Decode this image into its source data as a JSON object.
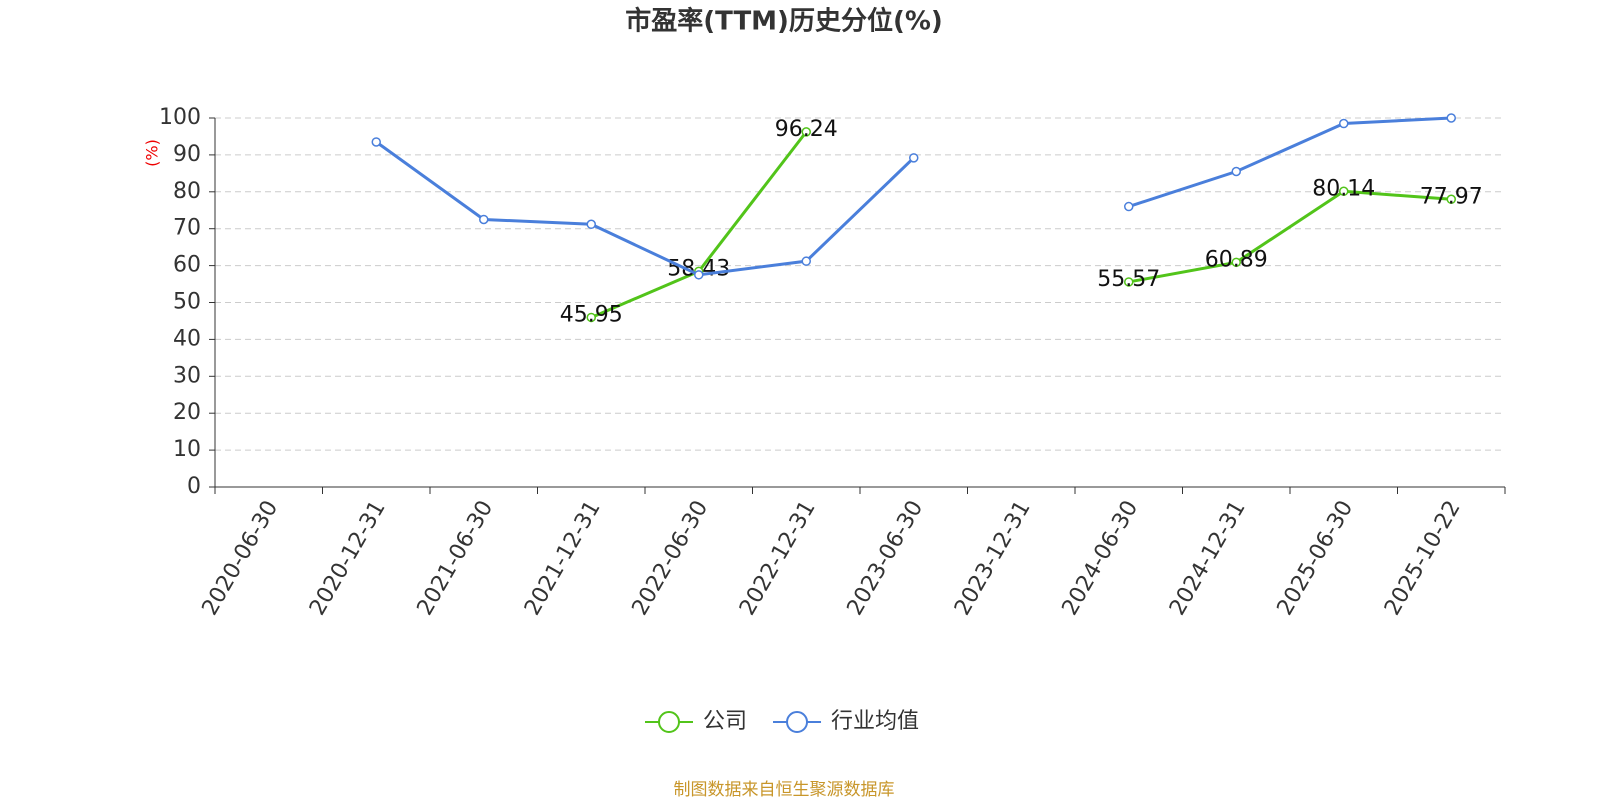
{
  "chart_data": {
    "type": "line",
    "title": "市盈率(TTM)历史分位(%)",
    "y_label": "(%)",
    "categories": [
      "2020-06-30",
      "2020-12-31",
      "2021-06-30",
      "2021-12-31",
      "2022-06-30",
      "2022-12-31",
      "2023-06-30",
      "2023-12-31",
      "2024-06-30",
      "2024-12-31",
      "2025-06-30",
      "2025-10-22"
    ],
    "series": [
      {
        "name": "公司",
        "color": "#52c41a",
        "show_labels": true,
        "values": [
          null,
          null,
          null,
          45.95,
          58.43,
          96.24,
          null,
          null,
          55.57,
          60.89,
          80.14,
          77.97
        ]
      },
      {
        "name": "行业均值",
        "color": "#4a7fdb",
        "show_labels": false,
        "values": [
          null,
          93.5,
          72.5,
          71.2,
          57.5,
          61.2,
          89.2,
          null,
          76,
          85.5,
          98.5,
          100
        ]
      }
    ],
    "ylim": [
      0,
      100
    ],
    "yticks": [
      0,
      10,
      20,
      30,
      40,
      50,
      60,
      70,
      80,
      90,
      100
    ],
    "grid": true,
    "legend": "bottom",
    "source": "制图数据来自恒生聚源数据库"
  }
}
